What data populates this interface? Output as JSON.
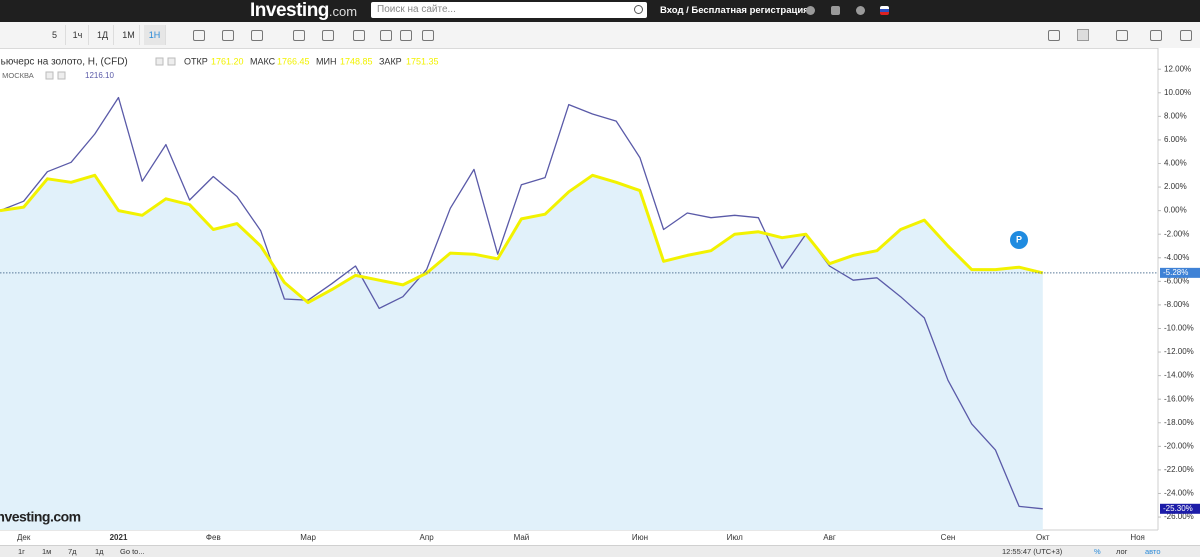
{
  "header": {
    "logo": "Investing",
    "logo_suffix": ".com",
    "search_placeholder": "Поиск на сайте...",
    "login": "Вход / Бесплатная регистрация"
  },
  "toolbar": {
    "intervals": [
      "5",
      "1ч",
      "1Д",
      "1М",
      "1Н"
    ]
  },
  "footer": {
    "ranges": [
      "1г",
      "1м",
      "7д",
      "1д"
    ],
    "goto": "Go to...",
    "time": "12:55:47 (UTC+3)",
    "options": [
      "%",
      "лог",
      "авто"
    ]
  },
  "chart_data": {
    "type": "line",
    "ohlc": [
      {
        "label": "ОТКР",
        "value": "1761.20"
      },
      {
        "label": "МАКС",
        "value": "1766.45"
      },
      {
        "label": "МИН",
        "value": "1748.85"
      },
      {
        "label": "ЗАКР",
        "value": "1751.35"
      }
    ],
    "watermark": "Investing.com",
    "marker": "P",
    "categories": [
      null,
      "Дек",
      null,
      null,
      null,
      "2021",
      null,
      null,
      null,
      "Фев",
      null,
      null,
      null,
      "Мар",
      null,
      null,
      null,
      null,
      "Апр",
      null,
      null,
      null,
      "Май",
      null,
      null,
      null,
      null,
      "Июн",
      null,
      null,
      null,
      "Июл",
      null,
      null,
      null,
      "Авг",
      null,
      null,
      null,
      null,
      "Сен",
      null,
      null,
      null,
      "Окт",
      null,
      null,
      null,
      "Ноя"
    ],
    "series": [
      {
        "name": "Фьючерс на золото, Н, (CFD)",
        "color": "#f2f200",
        "fill": "#e1f1fa",
        "tag_color": "#3f82d6",
        "last_label": "-5.28%",
        "values": [
          0,
          0.3,
          2.7,
          2.4,
          3.0,
          0,
          -0.4,
          1.0,
          0.5,
          -1.6,
          -1.1,
          -3.0,
          -6.1,
          -7.8,
          -6.7,
          -5.5,
          -5.9,
          -6.3,
          -5.3,
          -3.6,
          -3.7,
          -4.1,
          -0.7,
          -0.3,
          1.6,
          3.0,
          2.4,
          1.7,
          -4.3,
          -3.8,
          -3.4,
          -2.0,
          -1.8,
          -2.3,
          -2.0,
          -4.5,
          -3.8,
          -3.4,
          -1.6,
          -0.8,
          -3.0,
          -5.0,
          -5.0,
          -4.8,
          -5.28,
          null,
          null,
          null,
          null
        ]
      },
      {
        "name": ", МОСКВА",
        "color": "#5a5aa8",
        "tag_color": "#1c1ca8",
        "last_label": "-25.30%",
        "legend_value": "1216.10",
        "values": [
          0,
          0.8,
          3.3,
          4.1,
          6.5,
          9.6,
          2.5,
          5.6,
          0.9,
          2.9,
          1.2,
          -1.7,
          -7.5,
          -7.6,
          -6.2,
          -4.7,
          -8.3,
          -7.3,
          -5.0,
          0.2,
          3.5,
          -3.7,
          2.2,
          2.8,
          9.0,
          8.2,
          7.6,
          4.5,
          -1.6,
          -0.2,
          -0.6,
          -0.4,
          -0.6,
          -4.9,
          -2.0,
          -4.7,
          -5.9,
          -5.7,
          -7.3,
          -9.1,
          -14.4,
          -18.1,
          -20.3,
          -25.1,
          -25.3,
          null,
          null,
          null,
          null
        ]
      }
    ],
    "ylim": [
      -27.1,
      13.8
    ],
    "yticks": [
      {
        "value": 12,
        "label": "12.00%"
      },
      {
        "value": 10,
        "label": "10.00%"
      },
      {
        "value": 8,
        "label": "8.00%"
      },
      {
        "value": 6,
        "label": "6.00%"
      },
      {
        "value": 4,
        "label": "4.00%"
      },
      {
        "value": 2,
        "label": "2.00%"
      },
      {
        "value": 0,
        "label": "0.00%"
      },
      {
        "value": -2,
        "label": "-2.00%"
      },
      {
        "value": -4,
        "label": "-4.00%"
      },
      {
        "value": -6,
        "label": "-6.00%"
      },
      {
        "value": -8,
        "label": "-8.00%"
      },
      {
        "value": -10,
        "label": "-10.00%"
      },
      {
        "value": -12,
        "label": "-12.00%"
      },
      {
        "value": -14,
        "label": "-14.00%"
      },
      {
        "value": -16,
        "label": "-16.00%"
      },
      {
        "value": -18,
        "label": "-18.00%"
      },
      {
        "value": -20,
        "label": "-20.00%"
      },
      {
        "value": -22,
        "label": "-22.00%"
      },
      {
        "value": -24,
        "label": "-24.00%"
      },
      {
        "value": -26,
        "label": "-26.00%"
      }
    ],
    "grid": false,
    "price_line": true
  }
}
